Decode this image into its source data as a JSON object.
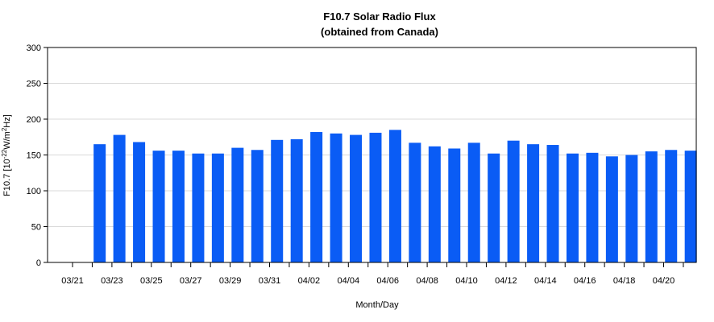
{
  "chart_data": {
    "type": "bar",
    "title": "F10.7 Solar Radio Flux",
    "subtitle": "(obtained from Canada)",
    "xlabel": "Month/Day",
    "ylabel": {
      "prefix": "F10.7 [10",
      "exp1": "-22",
      "mid": "W/m",
      "exp2": "2",
      "suffix": "Hz]"
    },
    "ylim": [
      0,
      300
    ],
    "yticks": [
      "0",
      "50",
      "100",
      "150",
      "200",
      "250",
      "300"
    ],
    "grid": true,
    "legend": "none",
    "bar_color": "#0a5cf5",
    "categories": [
      "03/21",
      "03/22",
      "03/23",
      "03/24",
      "03/25",
      "03/26",
      "03/27",
      "03/28",
      "03/29",
      "03/30",
      "03/31",
      "04/01",
      "04/02",
      "04/03",
      "04/04",
      "04/05",
      "04/06",
      "04/07",
      "04/08",
      "04/09",
      "04/10",
      "04/11",
      "04/12",
      "04/13",
      "04/14",
      "04/15",
      "04/16",
      "04/17",
      "04/18",
      "04/19",
      "04/20",
      "04/21"
    ],
    "values": [
      null,
      165,
      178,
      168,
      156,
      156,
      152,
      152,
      160,
      157,
      171,
      172,
      182,
      180,
      178,
      181,
      185,
      167,
      162,
      159,
      167,
      152,
      170,
      165,
      164,
      152,
      153,
      148,
      150,
      155,
      157,
      156
    ],
    "xtick_labels": [
      "03/21",
      "03/23",
      "03/25",
      "03/27",
      "03/29",
      "03/31",
      "04/02",
      "04/04",
      "04/06",
      "04/08",
      "04/10",
      "04/12",
      "04/14",
      "04/16",
      "04/18",
      "04/20"
    ]
  }
}
